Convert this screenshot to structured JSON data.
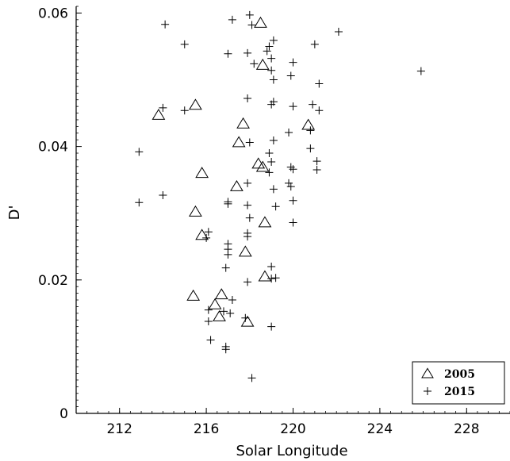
{
  "chart_data": {
    "type": "scatter",
    "title": "",
    "xlabel": "Solar Longitude",
    "ylabel": "D'",
    "xlim": [
      210,
      230
    ],
    "ylim": [
      0,
      0.061
    ],
    "xticks": [
      212,
      216,
      220,
      224,
      228
    ],
    "xtick_labels": [
      "212",
      "216",
      "220",
      "224",
      "228"
    ],
    "yticks": [
      0,
      0.02,
      0.04,
      0.06
    ],
    "ytick_labels": [
      "0",
      "0.02",
      "0.04",
      "0.06"
    ],
    "grid": false,
    "legend_position": "bottom-right",
    "series": [
      {
        "name": "2005",
        "marker": "triangle",
        "points": [
          [
            218.5,
            0.0585
          ],
          [
            218.6,
            0.0522
          ],
          [
            215.5,
            0.0462
          ],
          [
            213.8,
            0.0447
          ],
          [
            217.7,
            0.0434
          ],
          [
            220.7,
            0.0432
          ],
          [
            217.5,
            0.0406
          ],
          [
            218.4,
            0.0374
          ],
          [
            218.6,
            0.0369
          ],
          [
            215.8,
            0.036
          ],
          [
            217.4,
            0.034
          ],
          [
            215.5,
            0.0302
          ],
          [
            218.7,
            0.0286
          ],
          [
            215.8,
            0.0267
          ],
          [
            217.8,
            0.0242
          ],
          [
            218.7,
            0.0205
          ],
          [
            215.4,
            0.0176
          ],
          [
            216.7,
            0.0178
          ],
          [
            216.4,
            0.0163
          ],
          [
            216.6,
            0.0145
          ],
          [
            217.9,
            0.0137
          ]
        ]
      },
      {
        "name": "2015",
        "marker": "plus",
        "points": [
          [
            218.0,
            0.0597
          ],
          [
            217.2,
            0.059
          ],
          [
            214.1,
            0.0583
          ],
          [
            218.1,
            0.0582
          ],
          [
            219.1,
            0.0559
          ],
          [
            222.1,
            0.0572
          ],
          [
            215.0,
            0.0553
          ],
          [
            221.0,
            0.0553
          ],
          [
            218.9,
            0.055
          ],
          [
            218.8,
            0.0543
          ],
          [
            217.0,
            0.0539
          ],
          [
            217.9,
            0.054
          ],
          [
            219.0,
            0.0532
          ],
          [
            218.2,
            0.0524
          ],
          [
            220.0,
            0.0526
          ],
          [
            219.0,
            0.0514
          ],
          [
            225.9,
            0.0513
          ],
          [
            219.9,
            0.0506
          ],
          [
            219.1,
            0.05
          ],
          [
            221.2,
            0.0494
          ],
          [
            217.9,
            0.0472
          ],
          [
            219.1,
            0.0467
          ],
          [
            219.0,
            0.0463
          ],
          [
            220.9,
            0.0463
          ],
          [
            220.0,
            0.046
          ],
          [
            214.0,
            0.0458
          ],
          [
            215.0,
            0.0454
          ],
          [
            221.2,
            0.0454
          ],
          [
            220.8,
            0.0424
          ],
          [
            219.8,
            0.0421
          ],
          [
            219.1,
            0.0409
          ],
          [
            218.0,
            0.0406
          ],
          [
            220.8,
            0.0397
          ],
          [
            212.9,
            0.0392
          ],
          [
            218.9,
            0.039
          ],
          [
            221.1,
            0.0378
          ],
          [
            219.0,
            0.0377
          ],
          [
            219.9,
            0.0369
          ],
          [
            220.0,
            0.0366
          ],
          [
            221.1,
            0.0365
          ],
          [
            218.9,
            0.0361
          ],
          [
            219.8,
            0.0345
          ],
          [
            217.9,
            0.0345
          ],
          [
            219.9,
            0.034
          ],
          [
            219.1,
            0.0336
          ],
          [
            214.0,
            0.0327
          ],
          [
            212.9,
            0.0316
          ],
          [
            220.0,
            0.0319
          ],
          [
            217.0,
            0.0317
          ],
          [
            219.2,
            0.031
          ],
          [
            217.9,
            0.0312
          ],
          [
            217.0,
            0.0314
          ],
          [
            218.0,
            0.0293
          ],
          [
            220.0,
            0.0286
          ],
          [
            216.1,
            0.0272
          ],
          [
            217.9,
            0.027
          ],
          [
            217.9,
            0.0265
          ],
          [
            216.0,
            0.0263
          ],
          [
            217.0,
            0.0254
          ],
          [
            217.0,
            0.0246
          ],
          [
            217.0,
            0.0238
          ],
          [
            216.9,
            0.0218
          ],
          [
            219.0,
            0.022
          ],
          [
            219.2,
            0.0203
          ],
          [
            219.0,
            0.0202
          ],
          [
            217.9,
            0.0197
          ],
          [
            217.2,
            0.017
          ],
          [
            216.1,
            0.0155
          ],
          [
            216.8,
            0.0153
          ],
          [
            217.1,
            0.015
          ],
          [
            217.8,
            0.0143
          ],
          [
            216.1,
            0.0138
          ],
          [
            219.0,
            0.013
          ],
          [
            216.2,
            0.011
          ],
          [
            216.9,
            0.01
          ],
          [
            216.9,
            0.0096
          ],
          [
            218.1,
            0.0053
          ]
        ]
      }
    ]
  }
}
